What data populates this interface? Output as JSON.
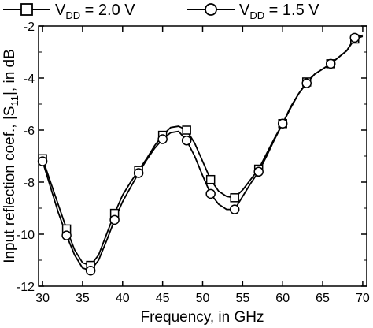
{
  "chart_data": {
    "type": "line",
    "xlabel": "Frequency, in GHz",
    "ylabel": "Input reflection coef., |S",
    "ylabel_sub": "11",
    "ylabel_tail": "|, in dB",
    "xlim": [
      29.5,
      70.5
    ],
    "ylim": [
      -12,
      -2
    ],
    "xticks": [
      30,
      35,
      40,
      45,
      50,
      55,
      60,
      65,
      70
    ],
    "yticks": [
      -12,
      -10,
      -8,
      -6,
      -4,
      -2
    ],
    "xtick_labels": [
      "30",
      "35",
      "40",
      "45",
      "50",
      "55",
      "60",
      "65",
      "70"
    ],
    "ytick_labels": [
      "-12",
      "-10",
      "-8",
      "-6",
      "-4",
      "-2"
    ],
    "grid": false,
    "legend_position": "top",
    "series": [
      {
        "name": "V",
        "name_sub": "DD",
        "name_tail": " = 2.0 V",
        "marker": "square",
        "color": "#000000",
        "x": [
          30,
          31,
          32,
          33,
          34,
          35,
          36,
          37,
          38,
          39,
          40,
          41,
          42,
          43,
          44,
          45,
          46,
          47,
          48,
          49,
          50,
          51,
          52,
          53,
          54,
          55,
          56,
          57,
          58,
          59,
          60,
          61,
          62,
          63,
          64,
          65,
          66,
          67,
          68,
          69,
          70
        ],
        "values": [
          -7.1,
          -8.0,
          -8.9,
          -9.8,
          -10.6,
          -11.1,
          -11.2,
          -10.8,
          -10.0,
          -9.2,
          -8.5,
          -8.0,
          -7.55,
          -7.1,
          -6.6,
          -6.2,
          -5.9,
          -5.85,
          -6.0,
          -6.5,
          -7.2,
          -7.9,
          -8.35,
          -8.55,
          -8.6,
          -8.3,
          -7.9,
          -7.5,
          -6.9,
          -6.3,
          -5.75,
          -5.1,
          -4.6,
          -4.15,
          -3.85,
          -3.65,
          -3.45,
          -3.2,
          -2.95,
          -2.5,
          -2.4
        ],
        "marker_x": [
          30,
          33,
          36,
          39,
          42,
          45,
          48,
          51,
          54,
          57,
          60,
          63,
          66,
          69
        ]
      },
      {
        "name": "V",
        "name_sub": "DD",
        "name_tail": " = 1.5 V",
        "marker": "circle",
        "color": "#000000",
        "x": [
          30,
          31,
          32,
          33,
          34,
          35,
          36,
          37,
          38,
          39,
          40,
          41,
          42,
          43,
          44,
          45,
          46,
          47,
          48,
          49,
          50,
          51,
          52,
          53,
          54,
          55,
          56,
          57,
          58,
          59,
          60,
          61,
          62,
          63,
          64,
          65,
          66,
          67,
          68,
          69,
          70
        ],
        "values": [
          -7.2,
          -8.2,
          -9.2,
          -10.05,
          -10.8,
          -11.3,
          -11.4,
          -11.0,
          -10.25,
          -9.45,
          -8.75,
          -8.2,
          -7.65,
          -7.15,
          -6.7,
          -6.35,
          -6.1,
          -6.05,
          -6.4,
          -7.0,
          -7.75,
          -8.45,
          -8.85,
          -9.05,
          -9.05,
          -8.55,
          -8.05,
          -7.6,
          -7.0,
          -6.35,
          -5.75,
          -5.15,
          -4.6,
          -4.2,
          -3.85,
          -3.65,
          -3.45,
          -3.2,
          -2.95,
          -2.45,
          -2.35
        ],
        "marker_x": [
          30,
          33,
          36,
          39,
          42,
          45,
          48,
          51,
          54,
          57,
          60,
          63,
          66,
          69
        ]
      }
    ]
  }
}
